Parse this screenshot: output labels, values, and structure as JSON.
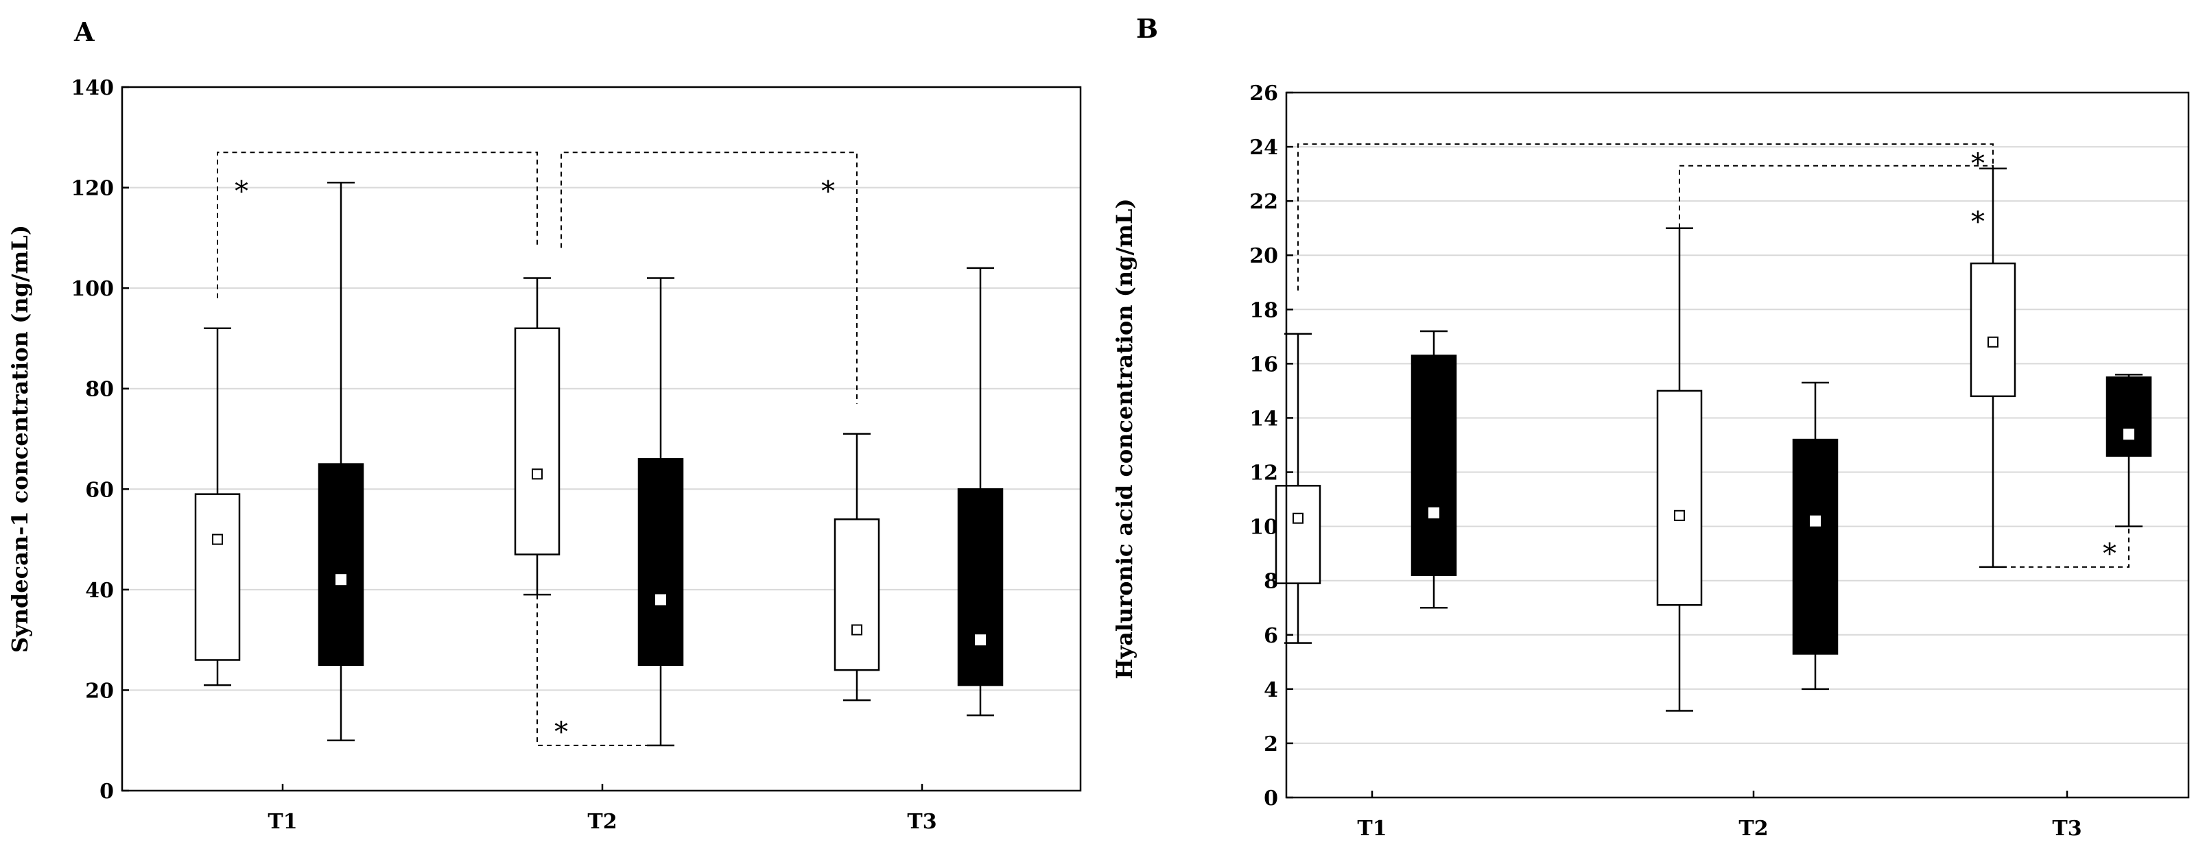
{
  "chart_data": [
    {
      "type": "box",
      "panel_label": "A",
      "title": "",
      "xlabel": "",
      "ylabel": "Syndecan-1 concentration (ng/mL)",
      "ylim": [
        0,
        140
      ],
      "yticks": [
        0,
        20,
        40,
        60,
        80,
        100,
        120,
        140
      ],
      "categories": [
        "T1",
        "T2",
        "T3"
      ],
      "grid": true,
      "series": [
        {
          "name": "white",
          "fill": "#ffffff",
          "marker_fill": "#ffffff",
          "boxes": [
            {
              "category": "T1",
              "min": 21,
              "q1": 26,
              "median": 50,
              "q3": 59,
              "max": 92
            },
            {
              "category": "T2",
              "min": 39,
              "q1": 47,
              "median": 63,
              "q3": 92,
              "max": 102
            },
            {
              "category": "T3",
              "min": 18,
              "q1": 24,
              "median": 32,
              "q3": 54,
              "max": 71
            }
          ]
        },
        {
          "name": "black",
          "fill": "#000000",
          "marker_fill": "#ffffff",
          "boxes": [
            {
              "category": "T1",
              "min": 10,
              "q1": 25,
              "median": 42,
              "q3": 65,
              "max": 121
            },
            {
              "category": "T2",
              "min": 9,
              "q1": 25,
              "median": 38,
              "q3": 66,
              "max": 102
            },
            {
              "category": "T3",
              "min": 15,
              "q1": 21,
              "median": 30,
              "q3": 60,
              "max": 104
            }
          ]
        }
      ],
      "annotations": [
        {
          "type": "bracket",
          "from": "T1-white",
          "to": "T2-white",
          "y_top": 127,
          "y_from": 98,
          "y_to": 108,
          "label": "*"
        },
        {
          "type": "bracket",
          "from": "T2-white",
          "to": "T3-white",
          "y_top": 127,
          "y_from": 108,
          "y_to": 77,
          "label": "*"
        },
        {
          "type": "bracket-bottom",
          "from": "T2-white",
          "to": "T2-black",
          "y_bottom": 9,
          "y_from": 39,
          "y_to": 9,
          "label": "*"
        }
      ]
    },
    {
      "type": "box",
      "panel_label": "B",
      "title": "",
      "xlabel": "",
      "ylabel": "Hyaluronic acid concentration (ng/mL)",
      "ylim": [
        0,
        26
      ],
      "yticks": [
        0,
        2,
        4,
        6,
        8,
        10,
        12,
        14,
        16,
        18,
        20,
        22,
        24,
        26
      ],
      "categories": [
        "T1",
        "T2",
        "T3"
      ],
      "grid": true,
      "series": [
        {
          "name": "white",
          "fill": "#ffffff",
          "marker_fill": "#ffffff",
          "boxes": [
            {
              "category": "T1",
              "min": 5.7,
              "q1": 7.9,
              "median": 10.3,
              "q3": 11.5,
              "max": 17.1
            },
            {
              "category": "T2",
              "min": 3.2,
              "q1": 7.1,
              "median": 10.4,
              "q3": 15.0,
              "max": 21.0
            },
            {
              "category": "T3",
              "min": 8.5,
              "q1": 14.8,
              "median": 16.8,
              "q3": 19.7,
              "max": 23.2
            }
          ]
        },
        {
          "name": "black",
          "fill": "#000000",
          "marker_fill": "#ffffff",
          "boxes": [
            {
              "category": "T1",
              "min": 7.0,
              "q1": 8.2,
              "median": 10.5,
              "q3": 16.3,
              "max": 17.2
            },
            {
              "category": "T2",
              "min": 4.0,
              "q1": 5.3,
              "median": 10.2,
              "q3": 13.2,
              "max": 15.3
            },
            {
              "category": "T3",
              "min": 10.0,
              "q1": 12.6,
              "median": 13.4,
              "q3": 15.5,
              "max": 15.6
            }
          ]
        }
      ],
      "annotations": [
        {
          "type": "bracket",
          "from": "T1-white",
          "to": "T3-white",
          "y_top": 24.1,
          "y_from": 18.7,
          "y_to": 23.2,
          "label": "*"
        },
        {
          "type": "bracket",
          "from": "T2-white",
          "to": "T3-white",
          "y_top": 23.3,
          "y_from": 21.0,
          "y_to": 23.2,
          "label": "*"
        },
        {
          "type": "bracket-bottom",
          "from": "T3-white",
          "to": "T3-black",
          "y_bottom": 8.5,
          "y_from": 8.5,
          "y_to": 10.0,
          "label": "*"
        }
      ]
    }
  ]
}
